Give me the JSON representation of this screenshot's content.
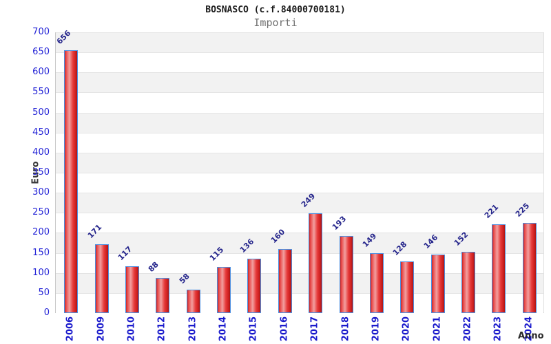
{
  "chart_data": {
    "type": "bar",
    "title": "BOSNASCO (c.f.84000700181)",
    "subtitle": "Importi",
    "xlabel": "Anno",
    "ylabel": "Euro",
    "categories": [
      "2006",
      "2009",
      "2010",
      "2012",
      "2013",
      "2014",
      "2015",
      "2016",
      "2017",
      "2018",
      "2019",
      "2020",
      "2021",
      "2022",
      "2023",
      "2024"
    ],
    "values": [
      656,
      171,
      117,
      88,
      58,
      115,
      136,
      160,
      249,
      193,
      149,
      128,
      146,
      152,
      221,
      225
    ],
    "ylim": [
      0,
      700
    ],
    "yticks": [
      700,
      650,
      600,
      550,
      500,
      450,
      400,
      350,
      300,
      250,
      200,
      150,
      100,
      50,
      0
    ],
    "grid": "alternating-horizontal-bands",
    "legend_position": "none",
    "colors": {
      "bar_fill_main": "#e63a3a",
      "bar_fill_light": "#f2a0a0",
      "bar_fill_dark": "#aa1616",
      "bar_border": "#4d8fe0",
      "band_gray": "#f2f2f2",
      "band_white": "#ffffff",
      "y_tick_text": "#2323d6",
      "x_tick_text": "#1a1acc",
      "value_label_text": "#26268c",
      "axis_title_text": "#3a3a3a",
      "title_text": "#1a1a1a",
      "subtitle_text": "#707070"
    }
  }
}
